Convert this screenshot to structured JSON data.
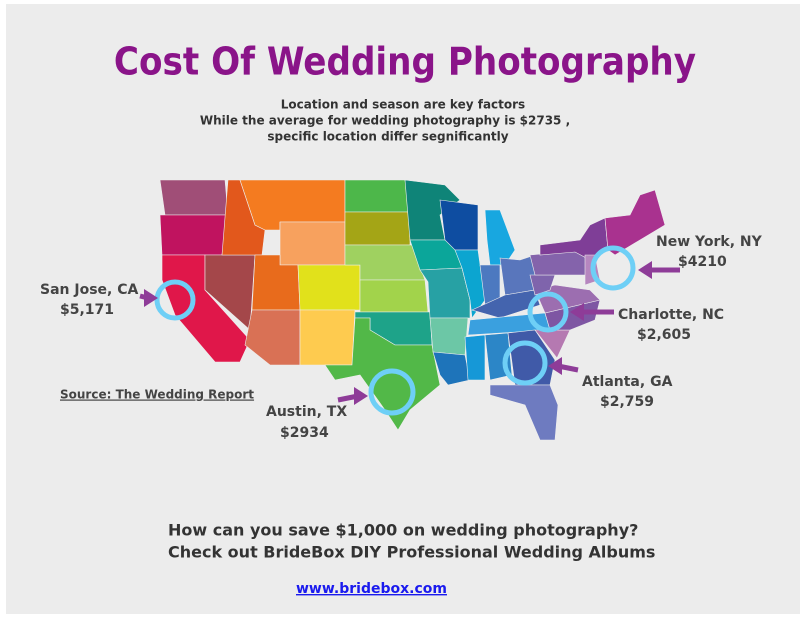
{
  "header": {
    "title": "Cost Of Wedding Photography",
    "subtitle": [
      "Location and season are key factors",
      "While the average for wedding photography is $2735 ,",
      "specific location differ segnificantly"
    ]
  },
  "cities": [
    {
      "name": "San Jose, CA",
      "price": "$5,171"
    },
    {
      "name": "Austin, TX",
      "price": "$2934"
    },
    {
      "name": "Atlanta, GA",
      "price": "$2,759"
    },
    {
      "name": "Charlotte, NC",
      "price": "$2,605"
    },
    {
      "name": "New York, NY",
      "price": "$4210"
    }
  ],
  "source": "Source: The Wedding Report",
  "footer": {
    "lines": [
      "How can you save $1,000 on wedding photography?",
      "Check out BrideBox DIY Professional Wedding Albums"
    ],
    "url": "www.bridebox.com"
  }
}
